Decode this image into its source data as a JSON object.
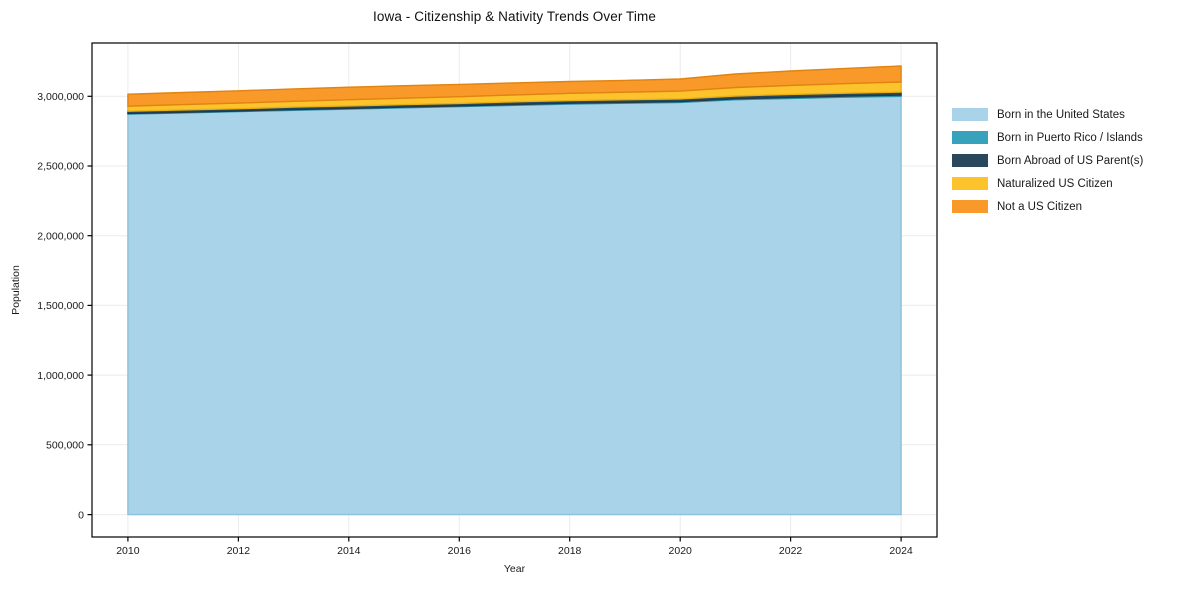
{
  "chart_data": {
    "type": "area",
    "stacked": true,
    "title": "Iowa - Citizenship & Nativity Trends Over Time",
    "xlabel": "Year",
    "ylabel": "Population",
    "x": [
      2010,
      2011,
      2012,
      2013,
      2014,
      2015,
      2016,
      2017,
      2018,
      2019,
      2020,
      2021,
      2022,
      2023,
      2024
    ],
    "series": [
      {
        "name": "Born in the United States",
        "color": "#a8d3e8",
        "edge": "#8cc2dc",
        "values": [
          2872000,
          2881000,
          2890000,
          2899000,
          2908000,
          2917000,
          2926000,
          2935000,
          2944000,
          2950000,
          2956000,
          2975000,
          2985000,
          2993000,
          3000000
        ]
      },
      {
        "name": "Born in Puerto Rico / Islands",
        "color": "#38a2bd",
        "edge": "#2e91aa",
        "values": [
          4000,
          4000,
          4000,
          5000,
          5000,
          5000,
          5000,
          6000,
          6000,
          6000,
          6000,
          7000,
          7000,
          8000,
          8000
        ]
      },
      {
        "name": "Born Abroad of US Parent(s)",
        "color": "#29485c",
        "edge": "#1f3a4b",
        "values": [
          17000,
          17000,
          17000,
          18000,
          18000,
          18000,
          18000,
          19000,
          19000,
          19000,
          19000,
          20000,
          21000,
          21000,
          22000
        ]
      },
      {
        "name": "Naturalized US Citizen",
        "color": "#fcc32d",
        "edge": "#e8b014",
        "values": [
          36000,
          38000,
          40000,
          42000,
          44000,
          46000,
          48000,
          50000,
          52000,
          54000,
          56000,
          61000,
          65000,
          69000,
          72000
        ]
      },
      {
        "name": "Not a US Citizen",
        "color": "#f8992a",
        "edge": "#e08310",
        "values": [
          86000,
          87000,
          88000,
          89000,
          90000,
          90000,
          88000,
          86000,
          85000,
          85000,
          87000,
          97000,
          103000,
          109000,
          115000
        ]
      }
    ],
    "xticks": [
      2010,
      2012,
      2014,
      2016,
      2018,
      2020,
      2022,
      2024
    ],
    "yticks": [
      0,
      500000,
      1000000,
      1500000,
      2000000,
      2500000,
      3000000
    ],
    "ytick_labels": [
      "0",
      "500,000",
      "1,000,000",
      "1,500,000",
      "2,000,000",
      "2,500,000",
      "3,000,000"
    ],
    "xlim": [
      2009.35,
      2024.65
    ],
    "ylim": [
      -161000,
      3382000
    ],
    "grid": true,
    "legend_position": "right"
  },
  "colors": {
    "background": "#ffffff",
    "grid": "#ebebeb",
    "axis": "#000000",
    "text": "#1a1a1a"
  }
}
